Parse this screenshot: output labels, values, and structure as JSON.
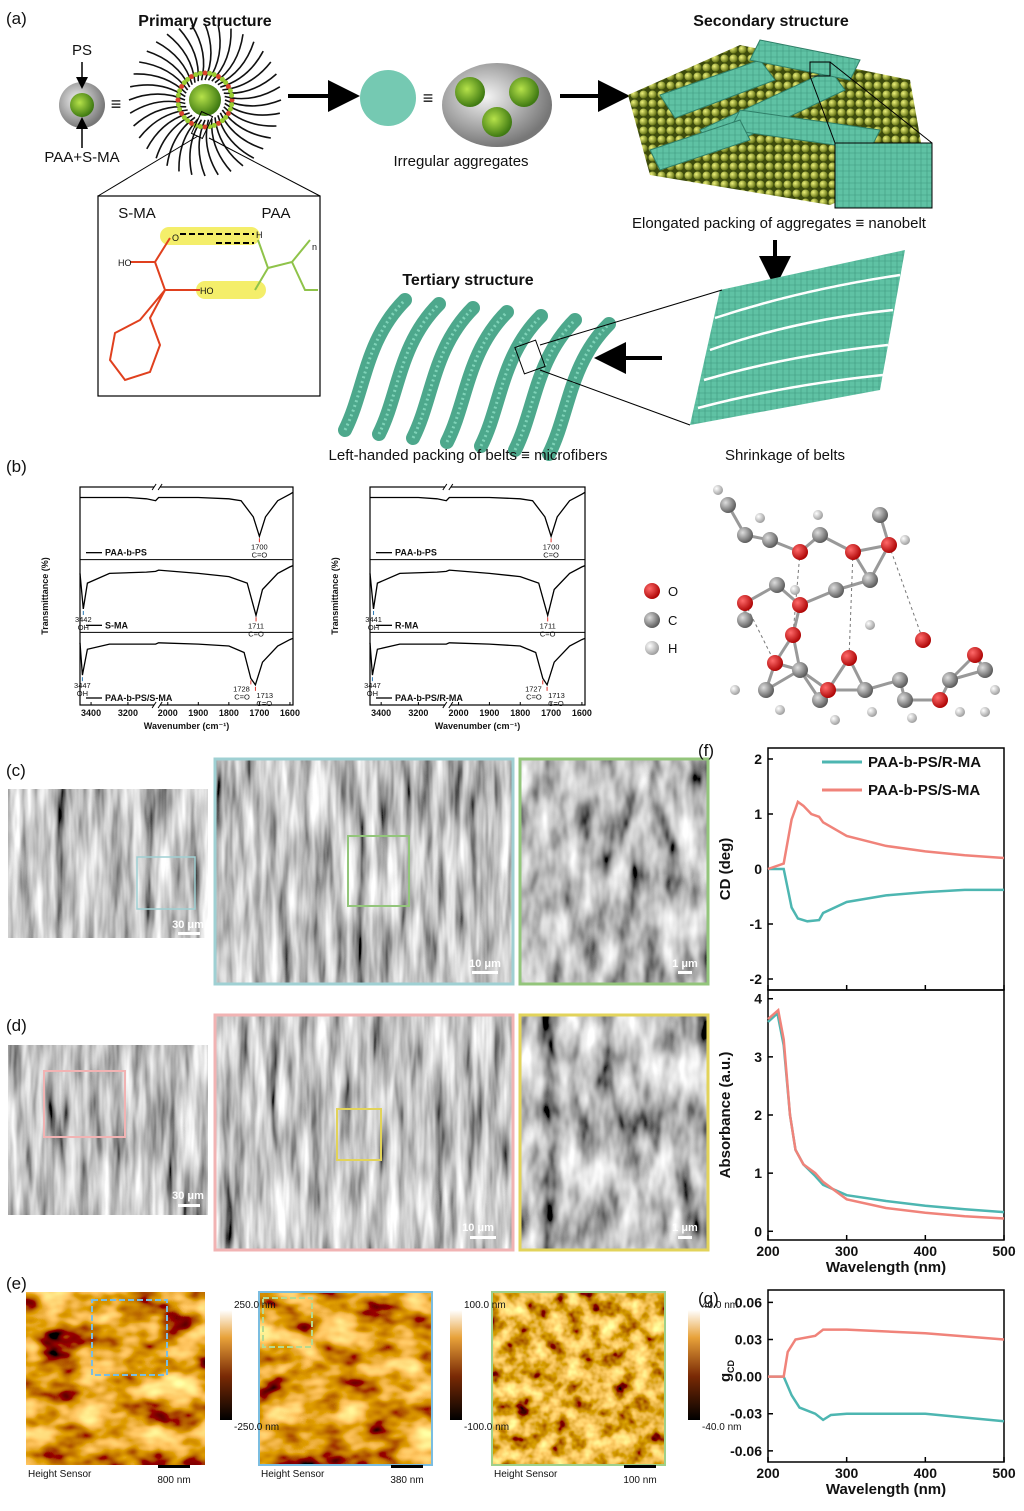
{
  "figure": {
    "panel_a": {
      "label": "(a)",
      "ps": "PS",
      "paa_sma": "PAA+S-MA",
      "equiv_1": "≡",
      "primary": "Primary structure",
      "irregular": "Irregular aggregates",
      "equiv_2": "≡",
      "secondary": "Secondary structure",
      "elongated": "Elongated packing of aggregates ≡ nanobelt",
      "sma": "S-MA",
      "paa": "PAA",
      "chem_labels": [
        "O",
        "HO",
        "HO",
        "H",
        "n"
      ],
      "tertiary": "Tertiary structure",
      "left_handed": "Left-handed packing of belts ≡ microfibers",
      "shrinkage": "Shrinkage of belts"
    },
    "panel_b_label": "(b)",
    "molecule_legend": [
      "O",
      "C",
      "H"
    ],
    "panel_c": {
      "label": "(c)",
      "scales": [
        "30 μm",
        "10 μm",
        "1 μm"
      ]
    },
    "panel_d": {
      "label": "(d)",
      "scales": [
        "30 μm",
        "10 μm",
        "1 μm"
      ]
    },
    "panel_e": {
      "label": "(e)",
      "images": [
        {
          "max": "250.0 nm",
          "min": "-250.0 nm",
          "channel": "Height Sensor",
          "scale": "800 nm"
        },
        {
          "max": "100.0 nm",
          "min": "-100.0 nm",
          "channel": "Height Sensor",
          "scale": "380 nm"
        },
        {
          "max": "40.0 nm",
          "min": "-40.0 nm",
          "channel": "Height Sensor",
          "scale": "100 nm"
        }
      ]
    },
    "panel_f_label": "(f)",
    "panel_g_label": "(g)"
  },
  "chart_data": [
    {
      "type": "ftir",
      "ylabel": "Transmittance (%)",
      "xlabel": "Wavenumber (cm⁻¹)",
      "xlim": [
        [
          3460,
          3050
        ],
        [
          2030,
          1590
        ]
      ],
      "xticks": [
        3400,
        3200,
        2000,
        1900,
        1800,
        1700,
        1600
      ],
      "ylim": [
        0,
        1
      ],
      "series": [
        {
          "name": "PAA-b-PS",
          "color": "#000000",
          "x": [
            3460,
            3400,
            3200,
            3100,
            3050,
            2030,
            2000,
            1900,
            1800,
            1760,
            1720,
            1700,
            1680,
            1640,
            1600,
            1590
          ],
          "values": [
            0.9,
            0.9,
            0.9,
            0.88,
            0.85,
            0.9,
            0.9,
            0.9,
            0.88,
            0.85,
            0.6,
            0.3,
            0.6,
            0.85,
            0.95,
            0.98
          ],
          "peaks": [
            {
              "x": 1700,
              "group": "C=O",
              "color": "#e0322a"
            }
          ]
        },
        {
          "name": "S-MA",
          "color": "#000000",
          "x": [
            3460,
            3442,
            3420,
            3300,
            3100,
            3050,
            2030,
            1900,
            1800,
            1740,
            1711,
            1690,
            1640,
            1600,
            1590
          ],
          "values": [
            0.85,
            0.3,
            0.7,
            0.85,
            0.87,
            0.88,
            0.9,
            0.85,
            0.8,
            0.7,
            0.2,
            0.6,
            0.85,
            0.95,
            0.97
          ],
          "peaks": [
            {
              "x": 3442,
              "group": "OH",
              "color": "#2a7ab8"
            },
            {
              "x": 1711,
              "group": "C=O",
              "color": "#e0322a"
            }
          ]
        },
        {
          "name": "PAA-b-PS/S-MA",
          "color": "#000000",
          "x": [
            3460,
            3447,
            3420,
            3300,
            3100,
            3050,
            2030,
            1900,
            1800,
            1750,
            1728,
            1713,
            1690,
            1640,
            1600,
            1590
          ],
          "values": [
            0.9,
            0.4,
            0.8,
            0.88,
            0.88,
            0.88,
            0.9,
            0.88,
            0.85,
            0.75,
            0.35,
            0.25,
            0.6,
            0.85,
            0.95,
            0.97
          ],
          "peaks": [
            {
              "x": 3447,
              "group": "OH",
              "color": "#2a7ab8"
            },
            {
              "x": 1728,
              "group": "C=O",
              "color": "#e0322a"
            },
            {
              "x": 1713,
              "group": "C=O",
              "color": "#e0322a"
            }
          ]
        }
      ]
    },
    {
      "type": "ftir",
      "ylabel": "Transmittance (%)",
      "xlabel": "Wavenumber (cm⁻¹)",
      "xlim": [
        [
          3460,
          3050
        ],
        [
          2030,
          1590
        ]
      ],
      "xticks": [
        3400,
        3200,
        2000,
        1900,
        1800,
        1700,
        1600
      ],
      "ylim": [
        0,
        1
      ],
      "series": [
        {
          "name": "PAA-b-PS",
          "color": "#000000",
          "x": [
            3460,
            3400,
            3200,
            3100,
            3050,
            2030,
            2000,
            1900,
            1800,
            1760,
            1720,
            1700,
            1680,
            1640,
            1600,
            1590
          ],
          "values": [
            0.9,
            0.9,
            0.9,
            0.88,
            0.85,
            0.9,
            0.9,
            0.9,
            0.88,
            0.85,
            0.6,
            0.3,
            0.6,
            0.85,
            0.95,
            0.98
          ],
          "peaks": [
            {
              "x": 1700,
              "group": "C=O",
              "color": "#e0322a"
            }
          ]
        },
        {
          "name": "R-MA",
          "color": "#000000",
          "x": [
            3460,
            3441,
            3420,
            3300,
            3100,
            3050,
            2030,
            1900,
            1800,
            1740,
            1711,
            1690,
            1640,
            1600,
            1590
          ],
          "values": [
            0.85,
            0.3,
            0.7,
            0.85,
            0.87,
            0.88,
            0.9,
            0.85,
            0.8,
            0.7,
            0.2,
            0.6,
            0.85,
            0.95,
            0.97
          ],
          "peaks": [
            {
              "x": 3441,
              "group": "OH",
              "color": "#2a7ab8"
            },
            {
              "x": 1711,
              "group": "C=O",
              "color": "#e0322a"
            }
          ]
        },
        {
          "name": "PAA-b-PS/R-MA",
          "color": "#000000",
          "x": [
            3460,
            3447,
            3420,
            3300,
            3100,
            3050,
            2030,
            1900,
            1800,
            1750,
            1727,
            1713,
            1690,
            1640,
            1600,
            1590
          ],
          "values": [
            0.9,
            0.4,
            0.8,
            0.88,
            0.88,
            0.88,
            0.9,
            0.88,
            0.85,
            0.75,
            0.35,
            0.25,
            0.6,
            0.85,
            0.95,
            0.97
          ],
          "peaks": [
            {
              "x": 3447,
              "group": "OH",
              "color": "#2a7ab8"
            },
            {
              "x": 1727,
              "group": "C=O",
              "color": "#e0322a"
            },
            {
              "x": 1713,
              "group": "C=O",
              "color": "#e0322a"
            }
          ]
        }
      ]
    },
    {
      "type": "line",
      "ylabel": "CD (deg)",
      "xlim": [
        200,
        500
      ],
      "xticks": [
        200,
        300,
        400,
        500
      ],
      "ylim": [
        -2.2,
        2.2
      ],
      "yticks": [
        -2,
        -1,
        0,
        1,
        2
      ],
      "legend": "upper right",
      "series": [
        {
          "name": "PAA-b-PS/R-MA",
          "color": "#4db6b1",
          "x": [
            200,
            220,
            230,
            238,
            250,
            265,
            270,
            300,
            350,
            400,
            450,
            500
          ],
          "values": [
            0,
            0,
            -0.7,
            -0.9,
            -0.95,
            -0.93,
            -0.8,
            -0.6,
            -0.48,
            -0.42,
            -0.38,
            -0.38
          ]
        },
        {
          "name": "PAA-b-PS/S-MA",
          "color": "#f0837a",
          "x": [
            200,
            220,
            230,
            238,
            245,
            255,
            265,
            270,
            300,
            350,
            400,
            450,
            500
          ],
          "values": [
            0,
            0.1,
            0.9,
            1.22,
            1.15,
            1.0,
            0.95,
            0.85,
            0.6,
            0.42,
            0.32,
            0.25,
            0.2
          ]
        }
      ]
    },
    {
      "type": "line",
      "xlabel": "Wavelength (nm)",
      "ylabel": "Absorbance (a.u.)",
      "xlim": [
        200,
        500
      ],
      "xticks": [
        200,
        300,
        400,
        500
      ],
      "ylim": [
        -0.15,
        4.15
      ],
      "yticks": [
        0,
        1,
        2,
        3,
        4
      ],
      "series": [
        {
          "color": "#4db6b1",
          "x": [
            200,
            212,
            220,
            228,
            235,
            245,
            260,
            270,
            300,
            350,
            400,
            450,
            500
          ],
          "values": [
            3.6,
            3.75,
            3.2,
            2.0,
            1.4,
            1.15,
            0.95,
            0.8,
            0.62,
            0.52,
            0.44,
            0.38,
            0.33
          ]
        },
        {
          "color": "#f0837a",
          "x": [
            200,
            213,
            220,
            228,
            235,
            245,
            260,
            270,
            300,
            350,
            400,
            450,
            500
          ],
          "values": [
            3.65,
            3.8,
            3.3,
            2.0,
            1.4,
            1.15,
            1.0,
            0.85,
            0.55,
            0.4,
            0.32,
            0.26,
            0.22
          ]
        }
      ]
    },
    {
      "type": "line",
      "xlabel": "Wavelength (nm)",
      "ylabel": "g",
      "ylabel_sub": "CD",
      "xlim": [
        200,
        500
      ],
      "xticks": [
        200,
        300,
        400,
        500
      ],
      "ylim": [
        -0.069,
        0.07
      ],
      "yticks": [
        -0.06,
        -0.03,
        {
          "value": 0,
          "label": "0.00"
        },
        0.03,
        0.06
      ],
      "series": [
        {
          "color": "#4db6b1",
          "x": [
            200,
            220,
            230,
            240,
            260,
            270,
            280,
            300,
            400,
            500
          ],
          "values": [
            0,
            0,
            -0.015,
            -0.025,
            -0.03,
            -0.035,
            -0.031,
            -0.03,
            -0.03,
            -0.036
          ]
        },
        {
          "color": "#f0837a",
          "x": [
            200,
            220,
            225,
            235,
            260,
            270,
            300,
            400,
            500
          ],
          "values": [
            0,
            0,
            0.02,
            0.03,
            0.033,
            0.038,
            0.038,
            0.035,
            0.03
          ]
        }
      ]
    }
  ]
}
